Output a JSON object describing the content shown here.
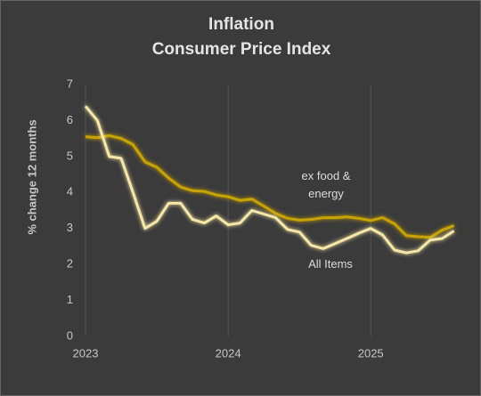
{
  "chart_data": {
    "type": "line",
    "title": "Inflation",
    "subtitle": "Consumer Price Index",
    "y_label": "% change 12 months",
    "x": [
      2023.0,
      2023.083,
      2023.167,
      2023.25,
      2023.333,
      2023.417,
      2023.5,
      2023.583,
      2023.667,
      2023.75,
      2023.833,
      2023.917,
      2024.0,
      2024.083,
      2024.167,
      2024.25,
      2024.333,
      2024.417,
      2024.5,
      2024.583,
      2024.667,
      2024.75,
      2024.833,
      2024.917,
      2025.0,
      2025.083,
      2025.167,
      2025.25,
      2025.333,
      2025.417,
      2025.5,
      2025.583
    ],
    "series": [
      {
        "name": "All Items",
        "color": "#f6e7a6",
        "values": [
          6.4,
          6.0,
          5.0,
          4.95,
          4.0,
          3.0,
          3.2,
          3.7,
          3.7,
          3.25,
          3.15,
          3.35,
          3.1,
          3.15,
          3.5,
          3.4,
          3.3,
          2.97,
          2.9,
          2.53,
          2.44,
          2.58,
          2.72,
          2.87,
          3.0,
          2.82,
          2.4,
          2.32,
          2.38,
          2.68,
          2.72,
          2.93
        ]
      },
      {
        "name": "ex food & energy",
        "color": "#c9a300",
        "values": [
          5.55,
          5.52,
          5.58,
          5.5,
          5.33,
          4.85,
          4.7,
          4.4,
          4.15,
          4.05,
          4.03,
          3.93,
          3.88,
          3.78,
          3.82,
          3.62,
          3.42,
          3.28,
          3.23,
          3.25,
          3.3,
          3.3,
          3.32,
          3.28,
          3.22,
          3.3,
          3.13,
          2.8,
          2.77,
          2.75,
          2.95,
          3.08
        ]
      }
    ],
    "xlim": [
      2023.0,
      2025.667
    ],
    "xticks": [
      2023,
      2024,
      2025
    ],
    "ylim": [
      0,
      7
    ],
    "yticks": [
      0,
      1,
      2,
      3,
      4,
      5,
      6,
      7
    ],
    "grid": "x"
  }
}
